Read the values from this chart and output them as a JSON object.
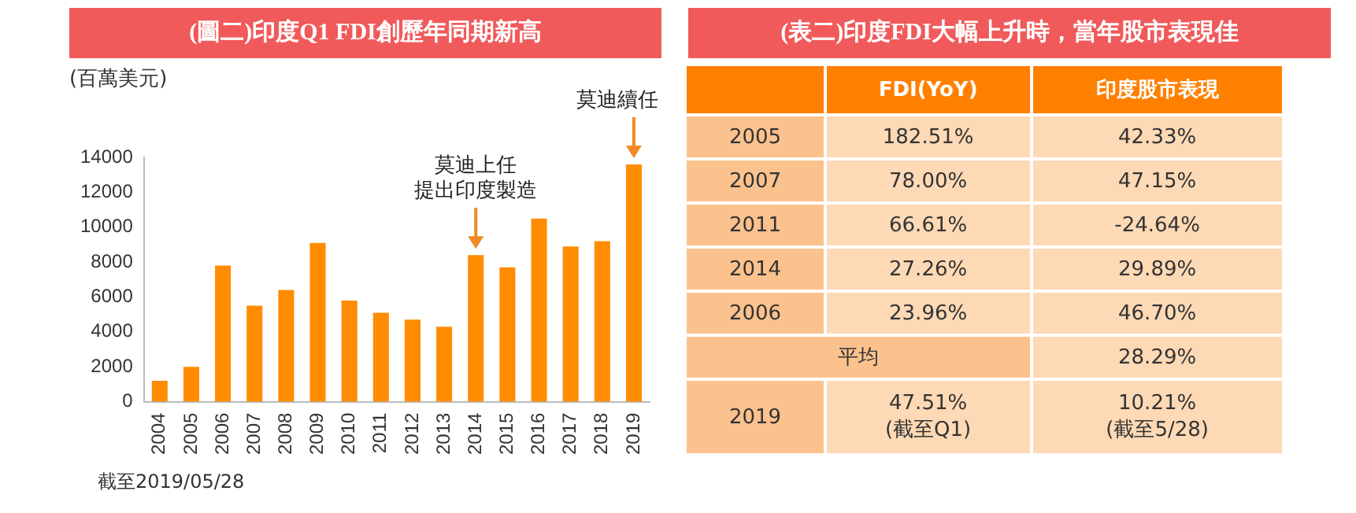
{
  "chart_data": [
    {
      "type": "bar",
      "title": "(圖二)印度Q1 FDI創歷年同期新高",
      "ylabel": "(百萬美元)",
      "categories": [
        "2004",
        "2005",
        "2006",
        "2007",
        "2008",
        "2009",
        "2010",
        "2011",
        "2012",
        "2013",
        "2014",
        "2015",
        "2016",
        "2017",
        "2018",
        "2019"
      ],
      "values": [
        1200,
        2000,
        7800,
        5500,
        6400,
        9100,
        5800,
        5100,
        4700,
        4300,
        8400,
        7700,
        10500,
        8900,
        9200,
        13600
      ],
      "color": "#ff8c00",
      "ylim": [
        0,
        14000
      ],
      "yticks": [
        0,
        2000,
        4000,
        6000,
        8000,
        10000,
        12000,
        14000
      ],
      "grid": false,
      "legend": false,
      "annotations": [
        {
          "text": "莫迪上任提出印度製造",
          "x": "2014",
          "y": 8400
        },
        {
          "text": "莫迪續任",
          "x": "2019",
          "y": 13600
        },
        "截至2019/05/28"
      ]
    },
    {
      "type": "other",
      "title": "(表二)印度FDI大幅上升時，當年股市表現佳",
      "categories": [
        null,
        "FDI(YoY)",
        "印度股市表現"
      ],
      "y_categories": [
        "2005",
        "2007",
        "2011",
        "2014",
        "2006",
        "平均",
        "2019"
      ],
      "cell_labels": [
        [
          "182.51%",
          "42.33%"
        ],
        [
          "78.00%",
          "47.15%"
        ],
        [
          "66.61%",
          "-24.64%"
        ],
        [
          "27.26%",
          "29.89%"
        ],
        [
          "23.96%",
          "46.70%"
        ],
        [
          null,
          "28.29%"
        ],
        [
          "47.51%\n(截至Q1)",
          "10.21%\n(截至5/28)"
        ]
      ]
    }
  ]
}
